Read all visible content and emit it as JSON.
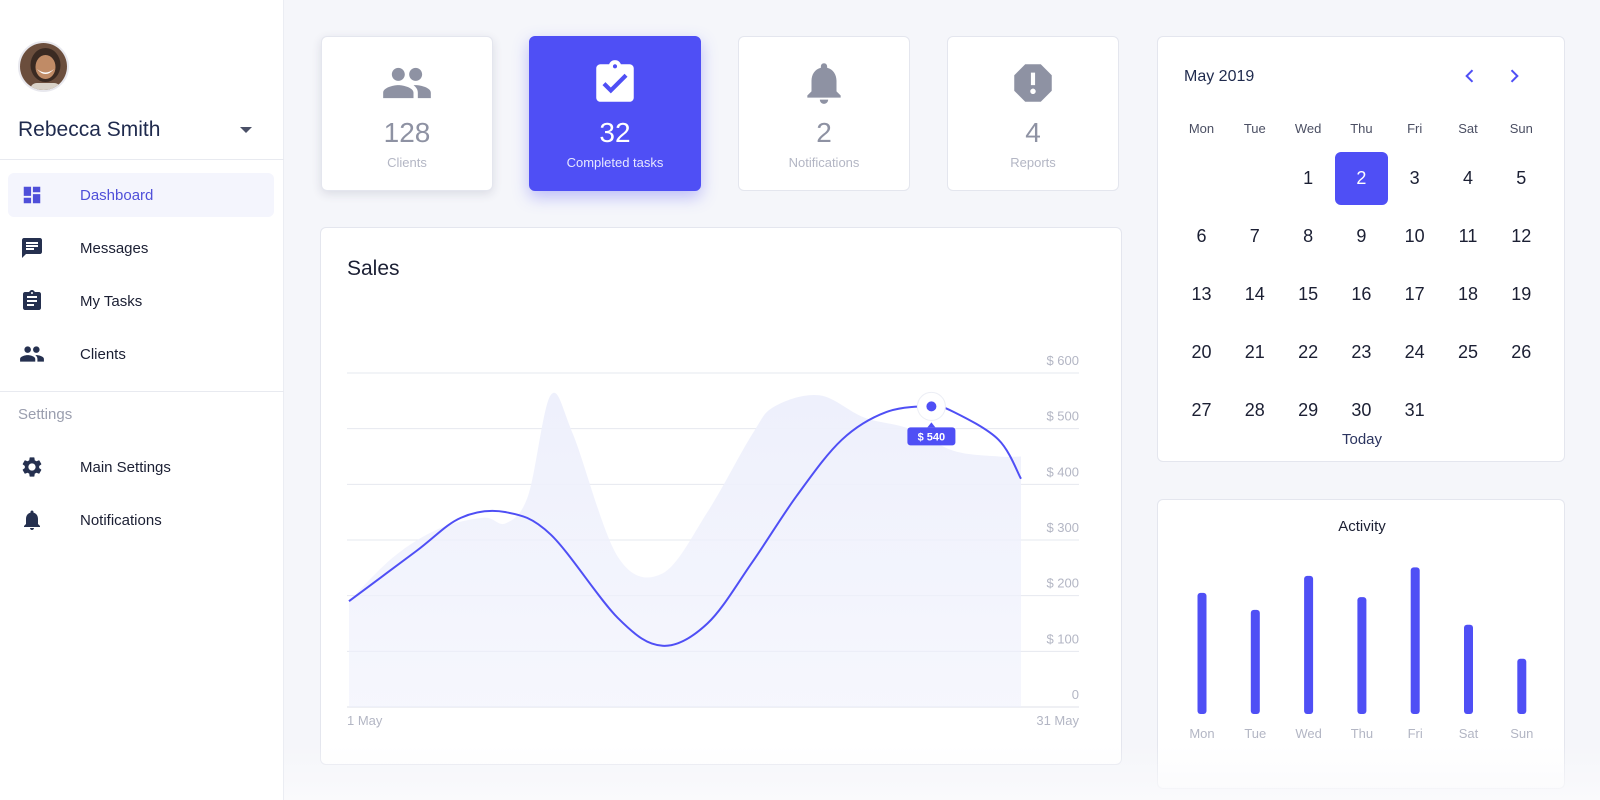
{
  "user": {
    "name": "Rebecca Smith"
  },
  "nav": {
    "items": [
      {
        "label": "Dashboard",
        "icon": "dashboard-icon",
        "active": true
      },
      {
        "label": "Messages",
        "icon": "message-icon",
        "active": false
      },
      {
        "label": "My Tasks",
        "icon": "clipboard-icon",
        "active": false
      },
      {
        "label": "Clients",
        "icon": "people-icon",
        "active": false
      }
    ],
    "settings_label": "Settings",
    "settings_items": [
      {
        "label": "Main Settings",
        "icon": "gear-icon"
      },
      {
        "label": "Notifications",
        "icon": "bell-icon"
      }
    ]
  },
  "stats": [
    {
      "value": "128",
      "label": "Clients",
      "icon": "people-icon"
    },
    {
      "value": "32",
      "label": "Completed tasks",
      "icon": "clipboard-check-icon",
      "active": true
    },
    {
      "value": "2",
      "label": "Notifications",
      "icon": "bell-icon"
    },
    {
      "value": "4",
      "label": "Reports",
      "icon": "alert-octagon-icon"
    }
  ],
  "colors": {
    "accent": "#4f4ff5",
    "area": "#eef0fc",
    "muted": "#8e92a3"
  },
  "sales": {
    "title": "Sales",
    "tooltip": "$ 540",
    "x_start_label": "1 May",
    "x_end_label": "31 May"
  },
  "chart_data": [
    {
      "type": "line",
      "title": "Sales",
      "y_tick_labels": [
        "0",
        "$ 100",
        "$ 200",
        "$ 300",
        "$ 400",
        "$ 500",
        "$ 600"
      ],
      "ylim": [
        0,
        600
      ],
      "x_labels": [
        "1 May",
        "31 May"
      ],
      "grid": true,
      "series": [
        {
          "x": [
            1,
            4,
            6,
            8,
            10,
            13,
            15,
            17,
            19,
            21,
            23,
            25,
            27,
            28,
            30,
            31
          ],
          "values": [
            190,
            280,
            340,
            350,
            310,
            160,
            110,
            150,
            260,
            380,
            480,
            530,
            540,
            530,
            480,
            410
          ]
        },
        {
          "x": [
            1,
            3,
            5,
            7,
            8,
            9,
            10,
            11,
            13,
            15,
            17,
            19,
            20,
            22,
            24,
            26,
            28,
            30,
            31
          ],
          "values": [
            190,
            270,
            320,
            340,
            330,
            380,
            560,
            490,
            270,
            240,
            350,
            490,
            540,
            560,
            520,
            500,
            460,
            450,
            450
          ]
        }
      ]
    },
    {
      "type": "bar",
      "title": "Activity",
      "categories": [
        "Mon",
        "Tue",
        "Wed",
        "Thu",
        "Fri",
        "Sat",
        "Sun"
      ],
      "values": [
        57,
        49,
        65,
        55,
        69,
        42,
        26
      ],
      "ylim": [
        0,
        80
      ]
    }
  ],
  "calendar": {
    "month_label": "May 2019",
    "weekdays": [
      "Mon",
      "Tue",
      "Wed",
      "Thu",
      "Fri",
      "Sat",
      "Sun"
    ],
    "first_weekday_index": 2,
    "days_in_month": 31,
    "selected_day": 2,
    "today_label": "Today"
  },
  "activity": {
    "title": "Activity"
  }
}
